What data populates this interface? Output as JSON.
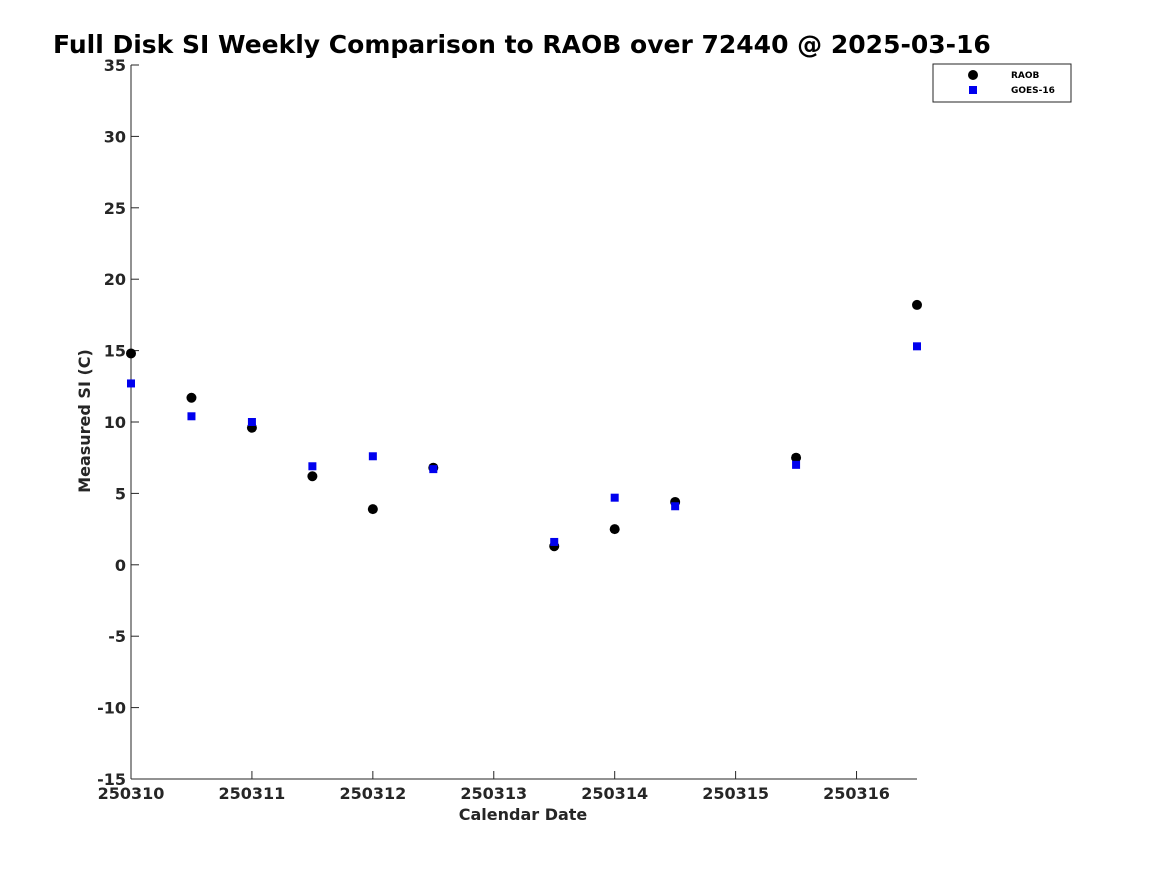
{
  "chart_data": {
    "type": "scatter",
    "title": "Full Disk SI Weekly Comparison to RAOB over 72440 @ 2025-03-16",
    "xlabel": "Calendar Date",
    "ylabel": "Measured SI (C)",
    "xlim": [
      250310,
      250316.5
    ],
    "ylim": [
      -15,
      35
    ],
    "xticks": [
      250310,
      250311,
      250312,
      250313,
      250314,
      250315,
      250316
    ],
    "xtick_labels": [
      "250310",
      "250311",
      "250312",
      "250313",
      "250314",
      "250315",
      "250316"
    ],
    "yticks": [
      -15,
      -10,
      -5,
      0,
      5,
      10,
      15,
      20,
      25,
      30,
      35
    ],
    "ytick_labels": [
      "-15",
      "-10",
      "-5",
      "0",
      "5",
      "10",
      "15",
      "20",
      "25",
      "30",
      "35"
    ],
    "grid": false,
    "legend_position": "top-right",
    "series": [
      {
        "name": "RAOB",
        "marker": "circle",
        "color": "#000000",
        "x": [
          250310,
          250310.5,
          250311,
          250311.5,
          250312,
          250312.5,
          250313.5,
          250314,
          250314.5,
          250315.5,
          250316.5
        ],
        "y": [
          14.8,
          11.7,
          9.6,
          6.2,
          3.9,
          6.8,
          1.3,
          2.5,
          4.4,
          7.5,
          18.2
        ]
      },
      {
        "name": "GOES-16",
        "marker": "square",
        "color": "#0000ee",
        "x": [
          250310,
          250310.5,
          250311,
          250311.5,
          250312,
          250312.5,
          250313.5,
          250314,
          250314.5,
          250315.5,
          250316.5
        ],
        "y": [
          12.7,
          10.4,
          10.0,
          6.9,
          7.6,
          6.7,
          1.6,
          4.7,
          4.1,
          7.0,
          15.3
        ]
      }
    ]
  }
}
